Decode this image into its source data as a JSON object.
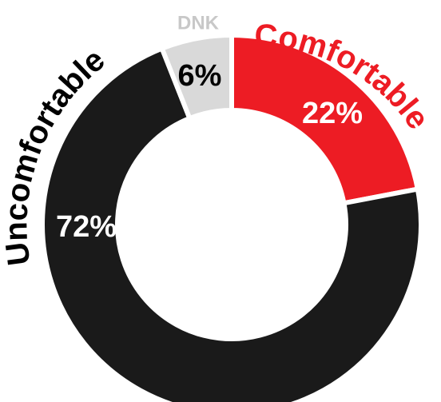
{
  "chart_data": {
    "type": "pie",
    "categories": [
      "Comfortable",
      "Uncomfortable",
      "DNK"
    ],
    "values": [
      22,
      72,
      6
    ],
    "value_labels": [
      "22%",
      "72%",
      "6%"
    ],
    "colors": [
      "#ed1c24",
      "#1a1a1a",
      "#d9d9d9"
    ],
    "label_colors": [
      "#ed1c24",
      "#000000",
      "#c8c8c8"
    ],
    "value_label_colors": [
      "#ffffff",
      "#ffffff",
      "#000000"
    ],
    "donut": true,
    "legend": "none"
  }
}
